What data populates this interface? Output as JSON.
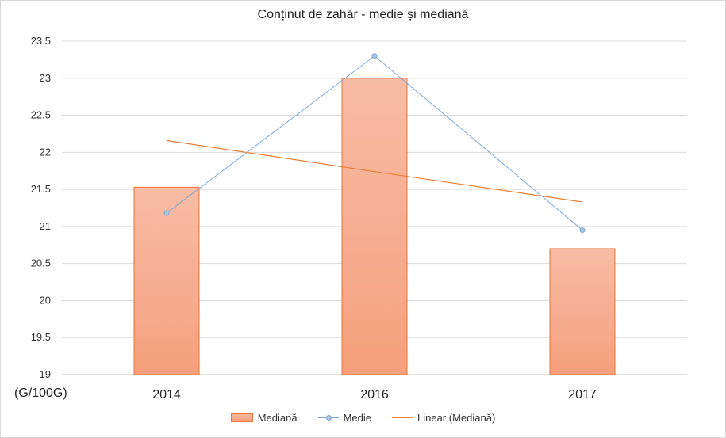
{
  "chart_data": {
    "type": "bar",
    "title": "Conținut de zahăr - medie și mediană",
    "unit_label": "(G/100G)",
    "categories": [
      "2014",
      "2016",
      "2017"
    ],
    "ylim": [
      19,
      23.5
    ],
    "yticks": [
      "19",
      "19.5",
      "20",
      "20.5",
      "21",
      "21.5",
      "22",
      "22.5",
      "23",
      "23.5"
    ],
    "grid": true,
    "legend_position": "bottom",
    "series": [
      {
        "name": "Mediană",
        "kind": "bar",
        "values": [
          21.53,
          23.0,
          20.7
        ],
        "color": "#f6a07c",
        "border": "#e8743b"
      },
      {
        "name": "Medie",
        "kind": "line",
        "values": [
          21.18,
          23.3,
          20.95
        ],
        "color": "#7fa6cf"
      },
      {
        "name": "Linear (Mediană)",
        "kind": "trendline",
        "values": [
          22.16,
          21.74,
          21.33
        ],
        "color": "#ed7d31"
      }
    ]
  }
}
